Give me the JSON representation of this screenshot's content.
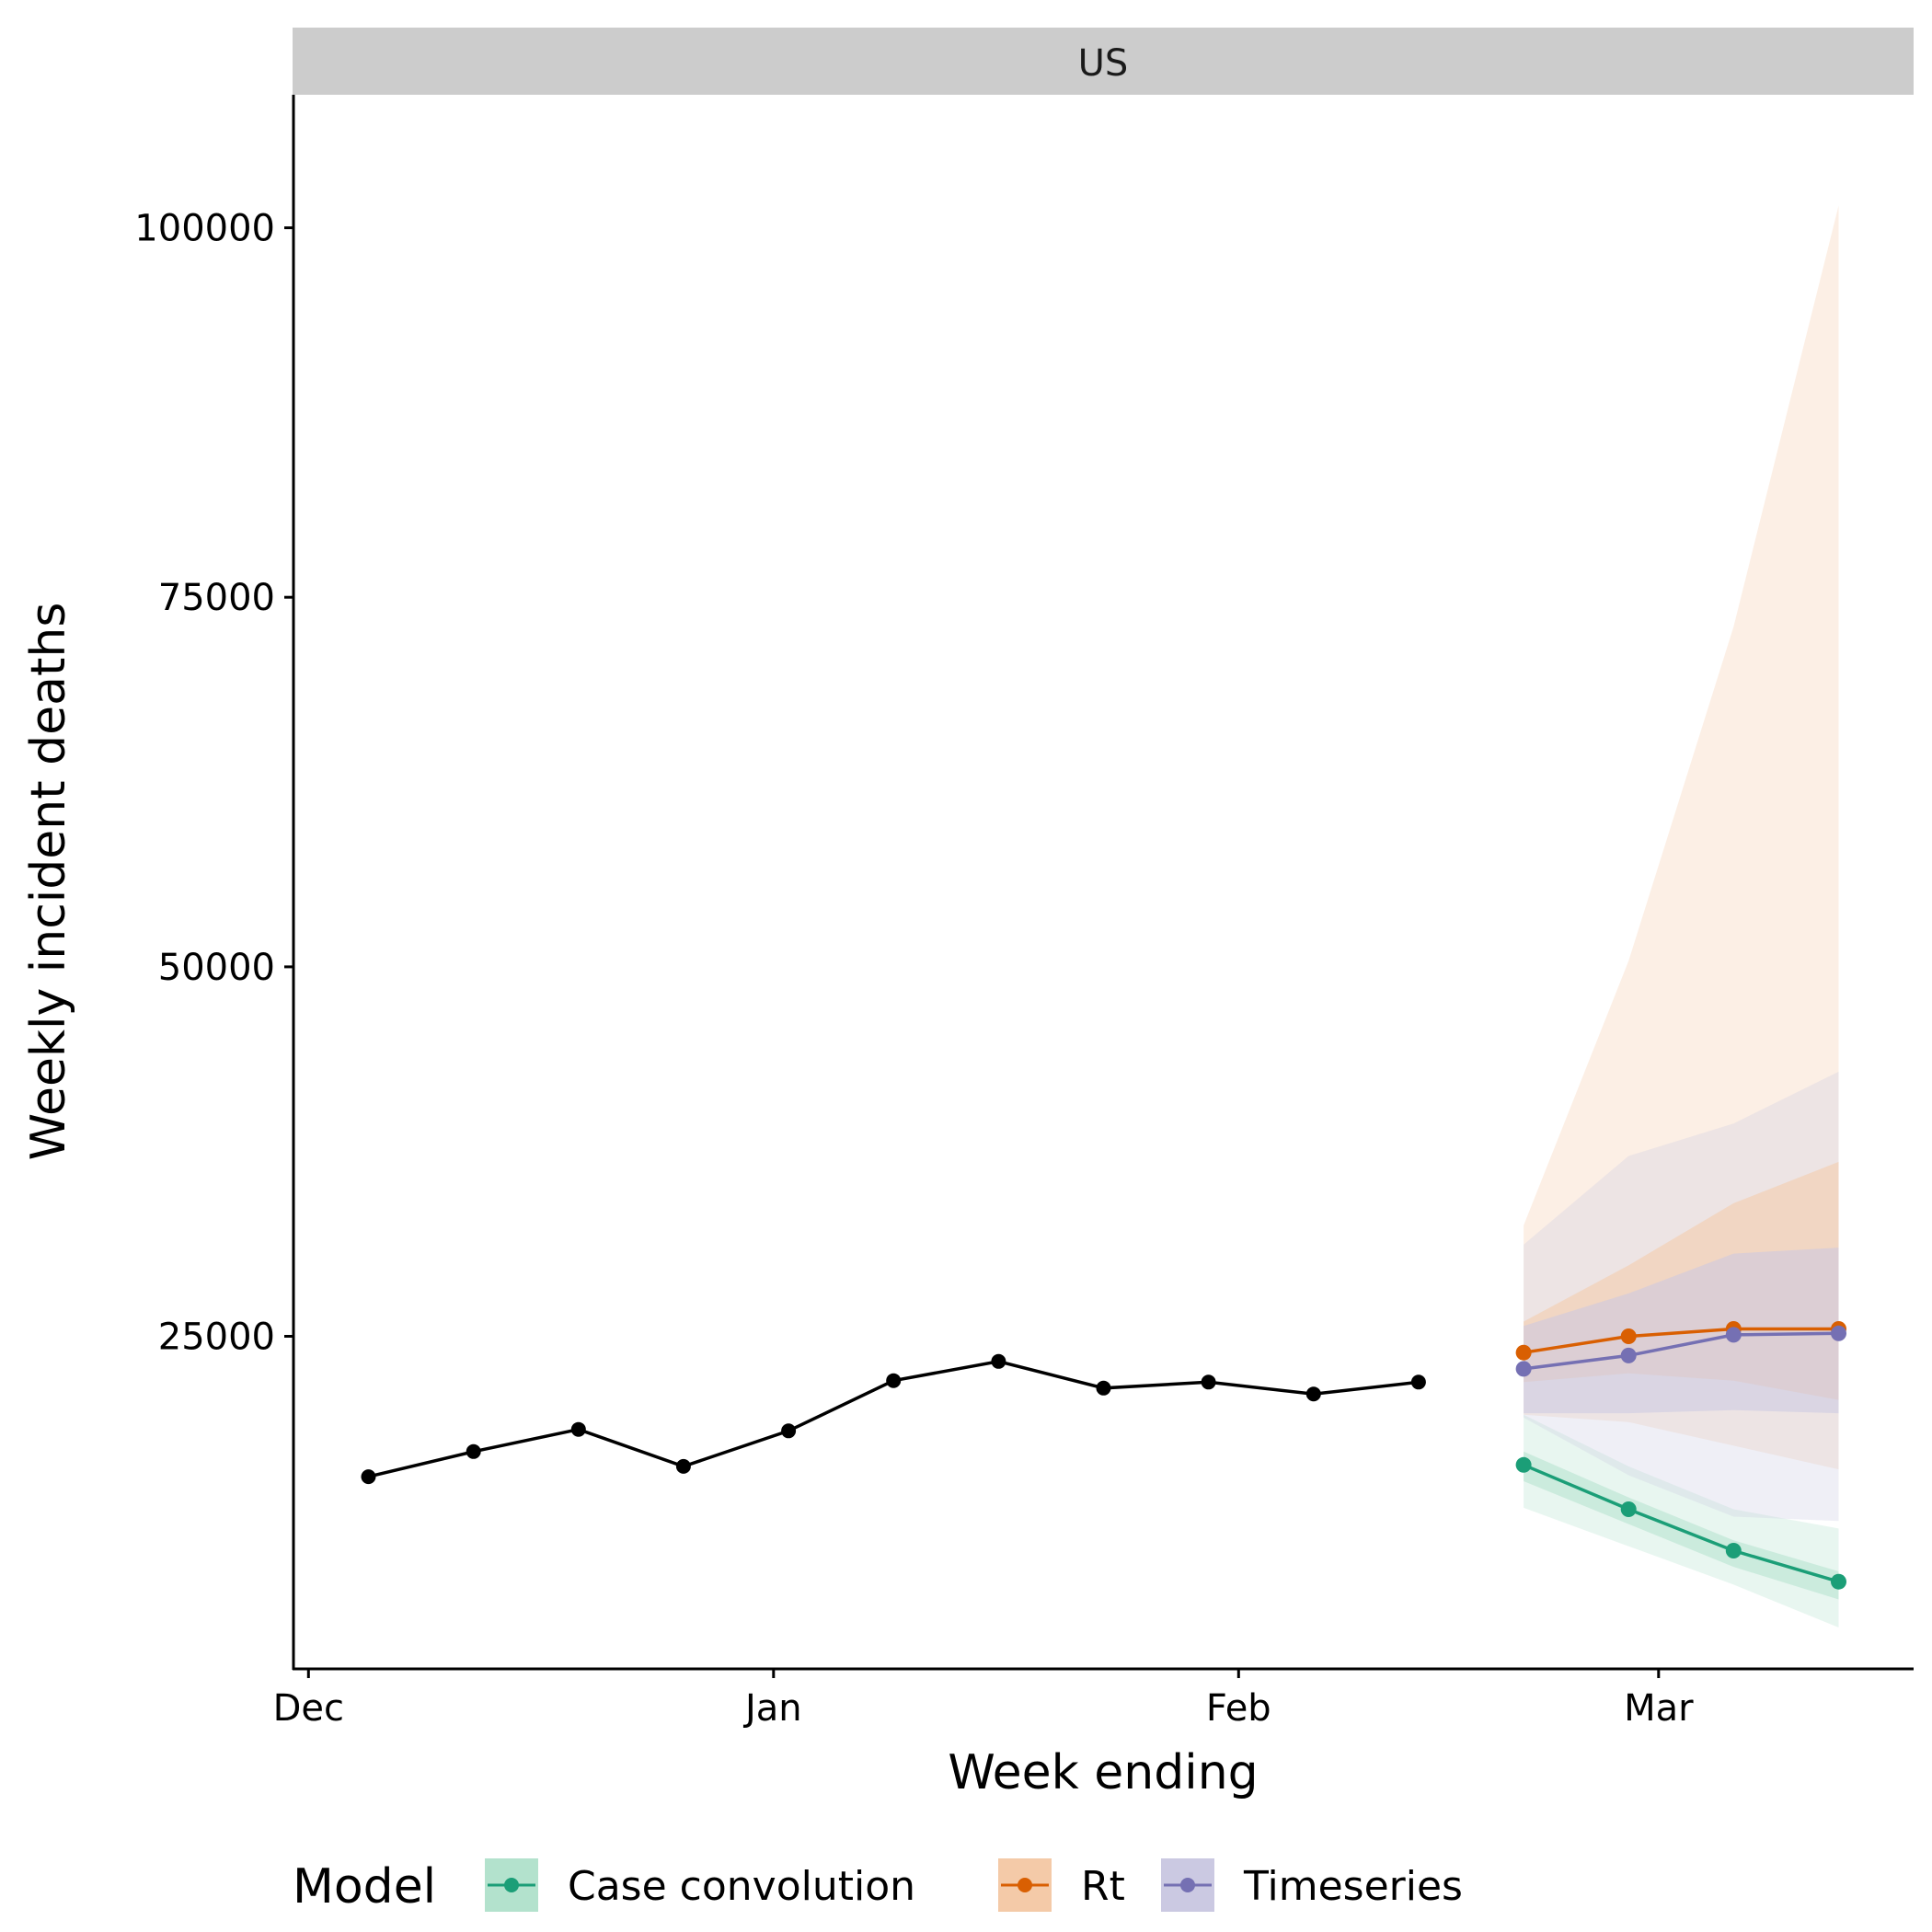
{
  "chart_data": {
    "type": "line",
    "panel_title": "US",
    "xlabel": "Week ending",
    "ylabel": "Weekly incident deaths",
    "x_ticks": [
      {
        "date": "2020-12-01",
        "label": "Dec"
      },
      {
        "date": "2021-01-01",
        "label": "Jan"
      },
      {
        "date": "2021-02-01",
        "label": "Feb"
      },
      {
        "date": "2021-03-01",
        "label": "Mar"
      }
    ],
    "y_ticks": [
      25000,
      50000,
      75000,
      100000
    ],
    "xlim": [
      "2020-11-30",
      "2021-03-18"
    ],
    "ylim": [
      2500,
      109000
    ],
    "grid": false,
    "legend": {
      "title": "Model",
      "position": "bottom",
      "entries": [
        "Case convolution",
        "Rt",
        "Timeseries"
      ]
    },
    "observed": {
      "color": "#000000",
      "x": [
        "2020-12-05",
        "2020-12-12",
        "2020-12-19",
        "2020-12-26",
        "2021-01-02",
        "2021-01-09",
        "2021-01-16",
        "2021-01-23",
        "2021-01-30",
        "2021-02-06",
        "2021-02-13"
      ],
      "y": [
        15500,
        17200,
        18700,
        16200,
        18600,
        22000,
        23300,
        21500,
        21900,
        21100,
        21900
      ]
    },
    "forecast_x": [
      "2021-02-20",
      "2021-02-27",
      "2021-03-06",
      "2021-03-13"
    ],
    "series": [
      {
        "name": "Case convolution",
        "color": "#1B9E77",
        "band_color": "#B3E2CD",
        "median": [
          16300,
          13300,
          10500,
          8400
        ],
        "inner": [
          [
            15200,
            17200
          ],
          [
            12300,
            14100
          ],
          [
            9400,
            11200
          ],
          [
            7200,
            9100
          ]
        ],
        "outer": [
          [
            13400,
            19700
          ],
          [
            10800,
            16200
          ],
          [
            8200,
            13300
          ],
          [
            5300,
            12000
          ]
        ]
      },
      {
        "name": "Rt",
        "color": "#D95F02",
        "band_color": "#F4CAA8",
        "median": [
          23900,
          25000,
          25500,
          25500
        ],
        "inner": [
          [
            21900,
            26000
          ],
          [
            22500,
            29800
          ],
          [
            22000,
            34000
          ],
          [
            20700,
            36800
          ]
        ],
        "outer": [
          [
            19700,
            32500
          ],
          [
            19200,
            50400
          ],
          [
            17600,
            73000
          ],
          [
            16000,
            101500
          ]
        ]
      },
      {
        "name": "Timeseries",
        "color": "#7570B3",
        "band_color": "#CBC9E2",
        "median": [
          22800,
          23700,
          25100,
          25200
        ],
        "inner": [
          [
            19800,
            25700
          ],
          [
            19800,
            27900
          ],
          [
            20000,
            30600
          ],
          [
            19800,
            31000
          ]
        ],
        "outer": [
          [
            19500,
            31200
          ],
          [
            15600,
            37200
          ],
          [
            12800,
            39400
          ],
          [
            12500,
            42900
          ]
        ]
      }
    ]
  }
}
